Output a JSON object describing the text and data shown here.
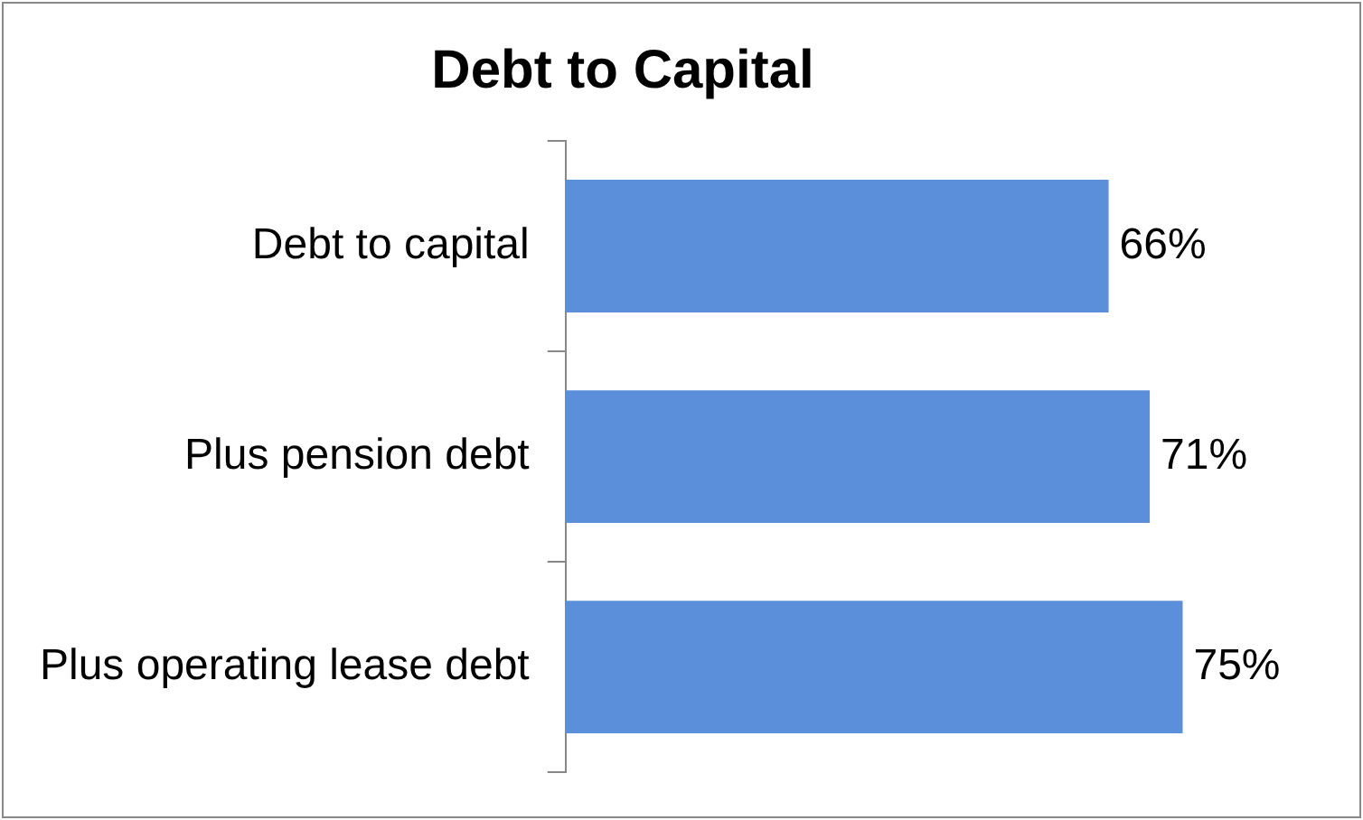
{
  "chart_data": {
    "type": "bar",
    "orientation": "horizontal",
    "title": "Debt to Capital",
    "categories": [
      "Debt to capital",
      "Plus pension debt",
      "Plus operating lease debt"
    ],
    "values": [
      66,
      71,
      75
    ],
    "value_labels": [
      "66%",
      "71%",
      "75%"
    ],
    "color": "#5b8fd9",
    "tick_labels": "y",
    "grid": false,
    "legend": false
  }
}
